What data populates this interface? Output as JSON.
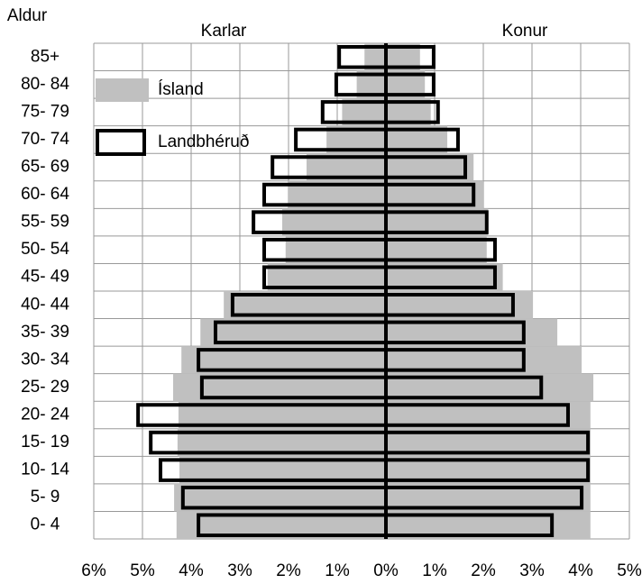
{
  "chart_data": {
    "type": "pyramid",
    "axis_title": "Aldur",
    "left_label": "Karlar",
    "right_label": "Konur",
    "categories": [
      "0- 4",
      "5- 9",
      "10- 14",
      "15- 19",
      "20- 24",
      "25- 29",
      "30- 34",
      "35- 39",
      "40- 44",
      "45- 49",
      "50- 54",
      "55- 59",
      "60- 64",
      "65- 69",
      "70- 74",
      "75- 79",
      "80- 84",
      "85+"
    ],
    "series": [
      {
        "name": "Ísland",
        "color": "#c0c0c0",
        "style": "filled",
        "male": [
          4.3,
          4.35,
          4.24,
          4.28,
          4.26,
          4.37,
          4.2,
          3.81,
          3.33,
          2.43,
          2.06,
          2.13,
          2.0,
          1.63,
          1.22,
          0.9,
          0.6,
          0.44
        ],
        "female": [
          4.2,
          4.2,
          4.2,
          4.2,
          4.2,
          4.26,
          4.02,
          3.52,
          3.02,
          2.4,
          2.07,
          2.1,
          2.0,
          1.8,
          1.26,
          0.92,
          0.8,
          0.7
        ]
      },
      {
        "name": "Landbhéruð",
        "color": "#000000",
        "style": "outline",
        "male": [
          3.85,
          4.17,
          4.63,
          4.83,
          5.09,
          3.78,
          3.85,
          3.5,
          3.15,
          2.5,
          2.5,
          2.72,
          2.5,
          2.33,
          1.85,
          1.3,
          1.02,
          0.96
        ],
        "female": [
          3.41,
          4.02,
          4.15,
          4.15,
          3.74,
          3.19,
          2.83,
          2.83,
          2.61,
          2.24,
          2.24,
          2.07,
          1.8,
          1.63,
          1.48,
          1.07,
          0.98,
          0.98
        ]
      }
    ],
    "xlim": [
      -6,
      5
    ],
    "xticks": [
      {
        "value": -6,
        "label": "6%"
      },
      {
        "value": -5,
        "label": "5%"
      },
      {
        "value": -4,
        "label": "4%"
      },
      {
        "value": -3,
        "label": "3%"
      },
      {
        "value": -2,
        "label": "2%"
      },
      {
        "value": -1,
        "label": "1%"
      },
      {
        "value": 0,
        "label": "0%"
      },
      {
        "value": 1,
        "label": "1%"
      },
      {
        "value": 2,
        "label": "2%"
      },
      {
        "value": 3,
        "label": "3%"
      },
      {
        "value": 4,
        "label": "4%"
      },
      {
        "value": 5,
        "label": "5%"
      }
    ],
    "grid": true
  }
}
